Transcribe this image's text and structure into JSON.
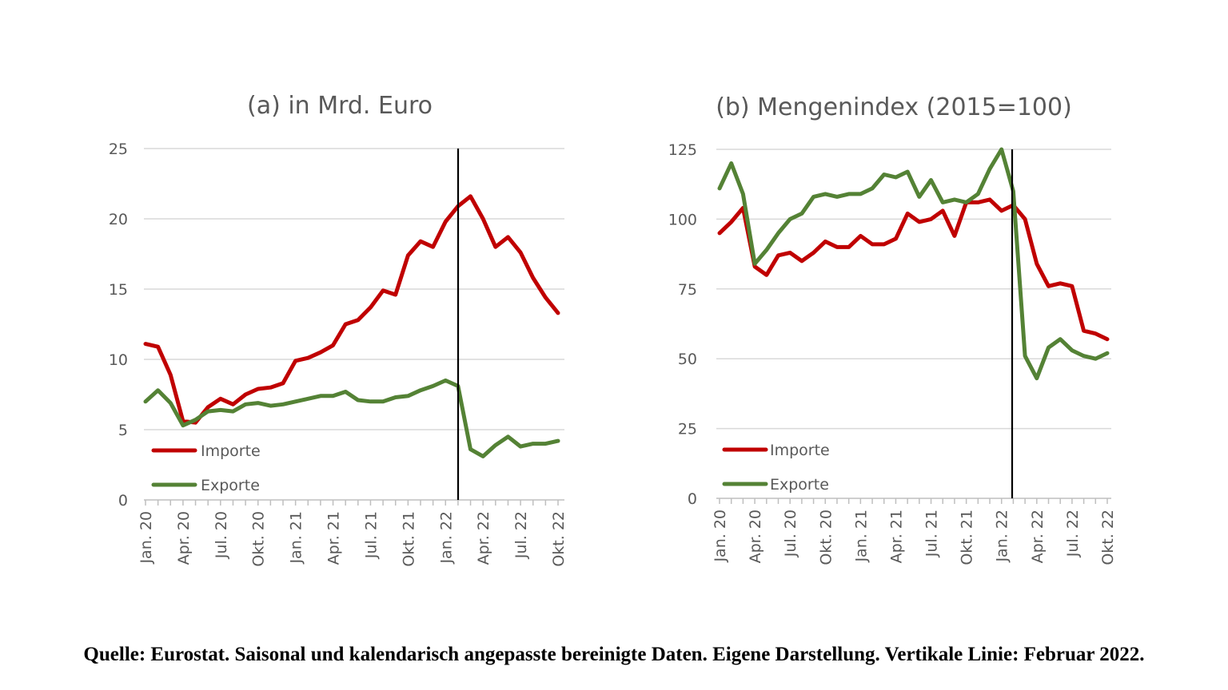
{
  "caption": "Quelle: Eurostat. Saisonal und kalendarisch angepasste bereinigte Daten. Eigene Darstellung. Vertikale Linie: Februar 2022.",
  "colors": {
    "importe": "#c00000",
    "exporte": "#548235",
    "grid": "#d9d9d9",
    "text": "#595959",
    "vertical_line": "#000000"
  },
  "chart_data": [
    {
      "type": "line",
      "title": "(a) in Mrd. Euro",
      "xlabel": "",
      "ylabel": "",
      "ylim": [
        0,
        25
      ],
      "yticks": [
        "0",
        "5",
        "10",
        "15",
        "20",
        "25"
      ],
      "xtick_labels": [
        "Jan. 20",
        "Apr. 20",
        "Jul. 20",
        "Okt. 20",
        "Jan. 21",
        "Apr. 21",
        "Jul. 21",
        "Okt. 21",
        "Jan. 22",
        "Apr. 22",
        "Jul. 22",
        "Okt. 22"
      ],
      "grid": true,
      "legend_position": "bottom-left",
      "vertical_line_at": "Feb. 22",
      "x": [
        "Jan. 20",
        "Feb. 20",
        "Mär. 20",
        "Apr. 20",
        "Mai 20",
        "Jun. 20",
        "Jul. 20",
        "Aug. 20",
        "Sep. 20",
        "Okt. 20",
        "Nov. 20",
        "Dez. 20",
        "Jan. 21",
        "Feb. 21",
        "Mär. 21",
        "Apr. 21",
        "Mai 21",
        "Jun. 21",
        "Jul. 21",
        "Aug. 21",
        "Sep. 21",
        "Okt. 21",
        "Nov. 21",
        "Dez. 21",
        "Jan. 22",
        "Feb. 22",
        "Mär. 22",
        "Apr. 22",
        "Mai 22",
        "Jun. 22",
        "Jul. 22",
        "Aug. 22",
        "Sep. 22",
        "Okt. 22"
      ],
      "series": [
        {
          "name": "Importe",
          "color": "#c00000",
          "values": [
            11.1,
            10.9,
            8.9,
            5.6,
            5.5,
            6.6,
            7.2,
            6.8,
            7.5,
            7.9,
            8.0,
            8.3,
            9.9,
            10.1,
            10.5,
            11.0,
            12.5,
            12.8,
            13.7,
            14.9,
            14.6,
            17.4,
            18.4,
            18.0,
            19.8,
            20.9,
            21.6,
            20.0,
            18.0,
            18.7,
            17.6,
            15.8,
            14.4,
            13.3
          ]
        },
        {
          "name": "Exporte",
          "color": "#548235",
          "values": [
            7.0,
            7.8,
            6.9,
            5.3,
            5.7,
            6.3,
            6.4,
            6.3,
            6.8,
            6.9,
            6.7,
            6.8,
            7.0,
            7.2,
            7.4,
            7.4,
            7.7,
            7.1,
            7.0,
            7.0,
            7.3,
            7.4,
            7.8,
            8.1,
            8.5,
            8.1,
            3.6,
            3.1,
            3.9,
            4.5,
            3.8,
            4.0,
            4.0,
            4.2
          ]
        }
      ]
    },
    {
      "type": "line",
      "title": "(b) Mengenindex (2015=100)",
      "xlabel": "",
      "ylabel": "",
      "ylim": [
        0,
        125
      ],
      "yticks": [
        "0",
        "25",
        "50",
        "75",
        "100",
        "125"
      ],
      "xtick_labels": [
        "Jan. 20",
        "Apr. 20",
        "Jul. 20",
        "Okt. 20",
        "Jan. 21",
        "Apr. 21",
        "Jul. 21",
        "Okt. 21",
        "Jan. 22",
        "Apr. 22",
        "Jul. 22",
        "Okt. 22"
      ],
      "grid": true,
      "legend_position": "bottom-left",
      "vertical_line_at": "Feb. 22",
      "x": [
        "Jan. 20",
        "Feb. 20",
        "Mär. 20",
        "Apr. 20",
        "Mai 20",
        "Jun. 20",
        "Jul. 20",
        "Aug. 20",
        "Sep. 20",
        "Okt. 20",
        "Nov. 20",
        "Dez. 20",
        "Jan. 21",
        "Feb. 21",
        "Mär. 21",
        "Apr. 21",
        "Mai 21",
        "Jun. 21",
        "Jul. 21",
        "Aug. 21",
        "Sep. 21",
        "Okt. 21",
        "Nov. 21",
        "Dez. 21",
        "Jan. 22",
        "Feb. 22",
        "Mär. 22",
        "Apr. 22",
        "Mai 22",
        "Jun. 22",
        "Jul. 22",
        "Aug. 22",
        "Sep. 22",
        "Okt. 22"
      ],
      "series": [
        {
          "name": "Importe",
          "color": "#c00000",
          "values": [
            95,
            99,
            104,
            83,
            80,
            87,
            88,
            85,
            88,
            92,
            90,
            90,
            94,
            91,
            91,
            93,
            102,
            99,
            100,
            103,
            94,
            106,
            106,
            107,
            103,
            105,
            100,
            84,
            76,
            77,
            76,
            60,
            59,
            57
          ]
        },
        {
          "name": "Exporte",
          "color": "#548235",
          "values": [
            111,
            120,
            109,
            84,
            89,
            95,
            100,
            102,
            108,
            109,
            108,
            109,
            109,
            111,
            116,
            115,
            117,
            108,
            114,
            106,
            107,
            106,
            109,
            118,
            125,
            110,
            51,
            43,
            54,
            57,
            53,
            51,
            50,
            52
          ]
        }
      ]
    }
  ]
}
